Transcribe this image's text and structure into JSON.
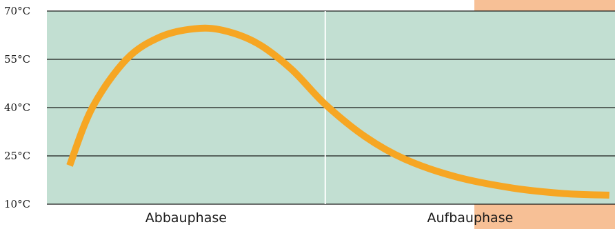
{
  "colors": {
    "plot_background": "#c2dfd2",
    "accent_background": "#f7c096",
    "curve": "#f6a623",
    "gridline": "#1a1a1a",
    "phase_divider": "#ffffff"
  },
  "chart_data": {
    "type": "line",
    "title": "",
    "xlabel": "",
    "ylabel": "",
    "ylim": [
      10,
      70
    ],
    "xlim": [
      0,
      100
    ],
    "y_ticks": [
      {
        "value": 10,
        "label": "10°C"
      },
      {
        "value": 25,
        "label": "25°C"
      },
      {
        "value": 40,
        "label": "40°C"
      },
      {
        "value": 55,
        "label": "55°C"
      },
      {
        "value": 70,
        "label": "70°C"
      }
    ],
    "grid": true,
    "phases": [
      {
        "label": "Abbauphase",
        "from": 0,
        "to": 49
      },
      {
        "label": "Aufbauphase",
        "from": 49,
        "to": 100
      }
    ],
    "series": [
      {
        "values": [
          {
            "x": 4,
            "y": 22
          },
          {
            "x": 8,
            "y": 40
          },
          {
            "x": 14,
            "y": 55
          },
          {
            "x": 20,
            "y": 62
          },
          {
            "x": 26,
            "y": 64.5
          },
          {
            "x": 31,
            "y": 64
          },
          {
            "x": 37,
            "y": 60
          },
          {
            "x": 43,
            "y": 52
          },
          {
            "x": 49,
            "y": 41
          },
          {
            "x": 56,
            "y": 31
          },
          {
            "x": 63,
            "y": 24
          },
          {
            "x": 72,
            "y": 18.5
          },
          {
            "x": 82,
            "y": 15
          },
          {
            "x": 91,
            "y": 13.3
          },
          {
            "x": 99,
            "y": 12.8
          }
        ]
      }
    ]
  }
}
